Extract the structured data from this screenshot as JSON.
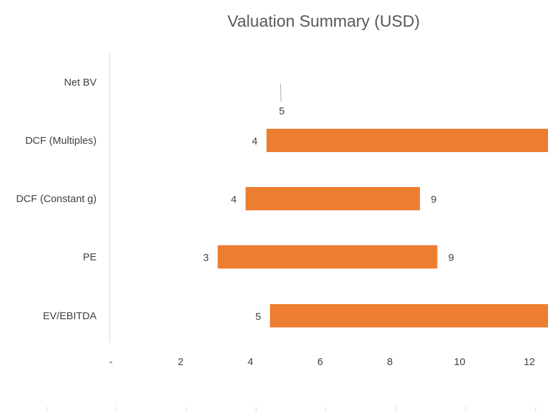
{
  "chart_data": {
    "type": "bar",
    "orientation": "horizontal",
    "title": "Valuation Summary (USD)",
    "categories": [
      "Net BV",
      "DCF (Multiples)",
      "DCF (Constant g)",
      "PE",
      "EV/EBITDA"
    ],
    "ranges": [
      {
        "low": 4.9,
        "high": 4.9,
        "low_label": "",
        "high_label": "5"
      },
      {
        "low": 4.5,
        "high": 12.6,
        "low_label": "4",
        "high_label": ""
      },
      {
        "low": 3.9,
        "high": 8.9,
        "low_label": "4",
        "high_label": "9"
      },
      {
        "low": 3.1,
        "high": 9.4,
        "low_label": "3",
        "high_label": "9"
      },
      {
        "low": 4.6,
        "high": 12.7,
        "low_label": "5",
        "high_label": ""
      }
    ],
    "xlim": [
      0,
      12.6
    ],
    "xticks": [
      0,
      2,
      4,
      6,
      8,
      10,
      12
    ],
    "xtick_labels": [
      "-",
      "2",
      "4",
      "6",
      "8",
      "10",
      "12"
    ],
    "bar_color": "#ED7D31",
    "legend": "none",
    "grid": false
  }
}
